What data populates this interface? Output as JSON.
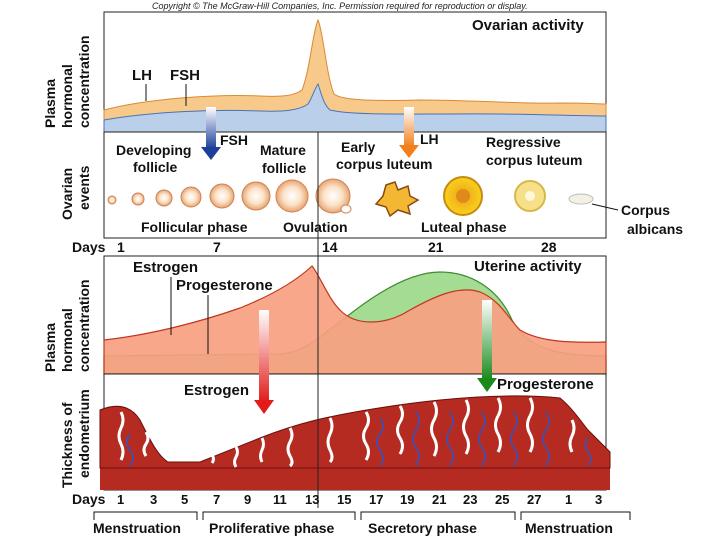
{
  "copyright": "Copyright © The McGraw-Hill Companies, Inc. Permission required for reproduction or display.",
  "top_panel": {
    "title": "Ovarian activity",
    "y_label_lines": [
      "Plasma",
      "hormonal",
      "concentration"
    ],
    "lh_label": "LH",
    "fsh_label": "FSH",
    "fsh_arrow_label": "FSH",
    "lh_arrow_label": "LH",
    "colors": {
      "lh_fill": "#f7c98b",
      "fsh_fill": "#b9cfea",
      "fsh_arrow": "#1d3f9a",
      "lh_arrow": "#f07f1c"
    }
  },
  "events_panel": {
    "y_label_lines": [
      "Ovarian",
      "events"
    ],
    "developing_follicle": [
      "Developing",
      "follicle"
    ],
    "mature_follicle": [
      "Mature",
      "follicle"
    ],
    "early_corpus_luteum": [
      "Early",
      "corpus luteum"
    ],
    "regressive_corpus_luteum": [
      "Regressive",
      "corpus luteum"
    ],
    "corpus_albicans": [
      "Corpus",
      "albicans"
    ],
    "follicular_phase": "Follicular phase",
    "ovulation": "Ovulation",
    "luteal_phase": "Luteal phase"
  },
  "days_top": {
    "label": "Days",
    "ticks": [
      "1",
      "7",
      "14",
      "21",
      "28"
    ]
  },
  "mid_panel": {
    "title": "Uterine activity",
    "y_label_lines": [
      "Plasma",
      "hormonal",
      "concentration"
    ],
    "estrogen_label": "Estrogen",
    "progesterone_label": "Progesterone",
    "colors": {
      "estrogen_fill": "#f7a081",
      "progesterone_fill": "#a3dc92"
    }
  },
  "endometrium_panel": {
    "y_label_lines": [
      "Thickness of",
      "endometrium"
    ],
    "estrogen_arrow_label": "Estrogen",
    "progesterone_arrow_label": "Progesterone",
    "colors": {
      "tissue": "#b52b22",
      "vessels": "#2d55c8"
    }
  },
  "days_bottom": {
    "label": "Days",
    "ticks": [
      "1",
      "3",
      "5",
      "7",
      "9",
      "11",
      "13",
      "15",
      "17",
      "19",
      "21",
      "23",
      "25",
      "27",
      "1",
      "3"
    ]
  },
  "phases": {
    "menstruation_1": "Menstruation",
    "proliferative": "Proliferative phase",
    "secretory": "Secretory phase",
    "menstruation_2": "Menstruation"
  }
}
